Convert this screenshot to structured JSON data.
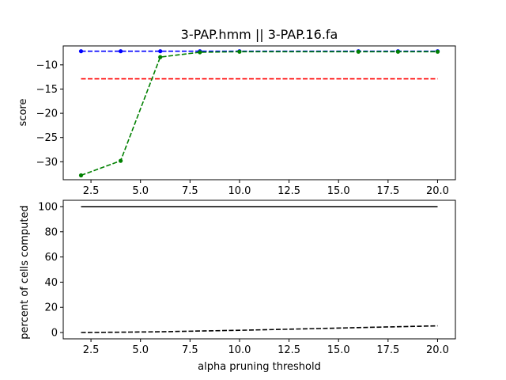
{
  "chart_data": [
    {
      "type": "line",
      "title": "3-PAP.hmm || 3-PAP.16.fa",
      "xlabel": "",
      "ylabel": "score",
      "xlim": [
        1.1,
        20.9
      ],
      "ylim": [
        -33.7,
        -6.1
      ],
      "xticks": [
        2.5,
        5.0,
        7.5,
        10.0,
        12.5,
        15.0,
        17.5,
        20.0
      ],
      "xtick_labels": [
        "2.5",
        "5.0",
        "7.5",
        "10.0",
        "12.5",
        "15.0",
        "17.5",
        "20.0"
      ],
      "yticks": [
        -10,
        -15,
        -20,
        -25,
        -30
      ],
      "ytick_labels": [
        "−10",
        "−15",
        "−20",
        "−25",
        "−30"
      ],
      "grid": false,
      "series": [
        {
          "color": "#0000ff",
          "style": "dashed",
          "markers": true,
          "x": [
            2,
            4,
            6,
            8,
            10,
            16,
            18,
            20
          ],
          "y": [
            -7.2,
            -7.2,
            -7.2,
            -7.2,
            -7.2,
            -7.2,
            -7.2,
            -7.2
          ]
        },
        {
          "color": "#ff0000",
          "style": "dashed",
          "markers": false,
          "x": [
            2,
            20
          ],
          "y": [
            -12.9,
            -12.9
          ]
        },
        {
          "color": "#008000",
          "style": "dashed",
          "markers": true,
          "x": [
            2,
            4,
            6,
            8,
            10,
            16,
            18,
            20
          ],
          "y": [
            -32.8,
            -29.8,
            -8.4,
            -7.4,
            -7.3,
            -7.3,
            -7.3,
            -7.3
          ]
        }
      ]
    },
    {
      "type": "line",
      "title": "",
      "xlabel": "alpha pruning threshold",
      "ylabel": "percent of cells computed",
      "xlim": [
        1.1,
        20.9
      ],
      "ylim": [
        -5,
        105
      ],
      "xticks": [
        2.5,
        5.0,
        7.5,
        10.0,
        12.5,
        15.0,
        17.5,
        20.0
      ],
      "xtick_labels": [
        "2.5",
        "5.0",
        "7.5",
        "10.0",
        "12.5",
        "15.0",
        "17.5",
        "20.0"
      ],
      "yticks": [
        0,
        20,
        40,
        60,
        80,
        100
      ],
      "ytick_labels": [
        "0",
        "20",
        "40",
        "60",
        "80",
        "100"
      ],
      "grid": false,
      "series": [
        {
          "color": "#000000",
          "style": "solid",
          "markers": false,
          "x": [
            2,
            20
          ],
          "y": [
            100,
            100
          ]
        },
        {
          "color": "#000000",
          "style": "dashed",
          "markers": false,
          "x": [
            2,
            4,
            6,
            8,
            10,
            12,
            14,
            16,
            18,
            20
          ],
          "y": [
            0.0,
            0.3,
            0.6,
            1.2,
            1.8,
            2.5,
            3.2,
            3.9,
            4.6,
            5.3
          ]
        }
      ]
    }
  ]
}
